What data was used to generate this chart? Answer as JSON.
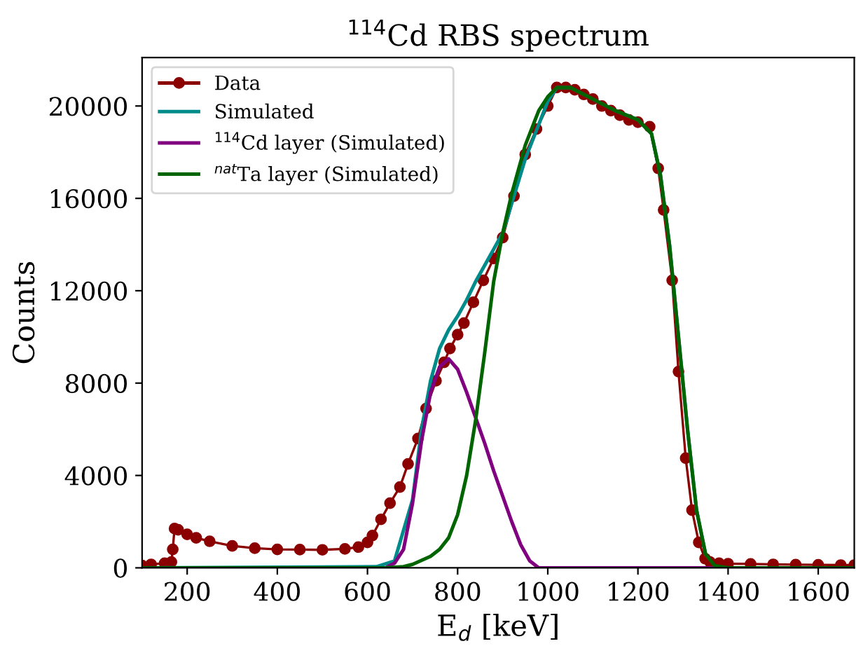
{
  "chart_data": {
    "type": "line",
    "title": "$^{114}$Cd RBS spectrum",
    "xlabel": "E$_{d}$ [keV]",
    "ylabel": "Counts",
    "xlim": [
      100,
      1680
    ],
    "xticks": [
      200,
      400,
      600,
      800,
      1000,
      1200,
      1400,
      1600
    ],
    "ylim": [
      0,
      22100
    ],
    "yticks": [
      0,
      4000,
      8000,
      12000,
      16000,
      20000
    ],
    "grid": false,
    "legend": "top left",
    "series": [
      {
        "name": "Data",
        "color": "#8b0000",
        "marker": "circle",
        "x": [
          100,
          120,
          150,
          165,
          168,
          172,
          180,
          200,
          220,
          250,
          300,
          350,
          400,
          450,
          500,
          550,
          580,
          600,
          611,
          630,
          650,
          672,
          690,
          712,
          730,
          752,
          770,
          783,
          800,
          814,
          835,
          857,
          880,
          900,
          925,
          950,
          975,
          1000,
          1020,
          1040,
          1060,
          1080,
          1100,
          1120,
          1140,
          1160,
          1180,
          1200,
          1226,
          1245,
          1257,
          1276,
          1290,
          1306,
          1320,
          1335,
          1349,
          1360,
          1380,
          1400,
          1450,
          1500,
          1550,
          1600,
          1650,
          1680
        ],
        "values": [
          100,
          150,
          200,
          250,
          800,
          1700,
          1650,
          1450,
          1300,
          1150,
          950,
          850,
          800,
          790,
          780,
          820,
          900,
          1100,
          1400,
          2100,
          2800,
          3500,
          4500,
          5600,
          6900,
          8100,
          8900,
          9500,
          10100,
          10600,
          11500,
          12450,
          13400,
          14300,
          16100,
          17900,
          19000,
          20000,
          20800,
          20800,
          20700,
          20500,
          20300,
          20000,
          19800,
          19600,
          19400,
          19300,
          19100,
          17300,
          15500,
          12450,
          8500,
          4750,
          2500,
          1100,
          400,
          250,
          200,
          180,
          170,
          150,
          140,
          130,
          120,
          120
        ]
      },
      {
        "name": "Simulated",
        "color": "#008b8b",
        "marker": "none",
        "x": [
          100,
          620,
          660,
          700,
          720,
          740,
          760,
          780,
          800,
          820,
          840,
          860,
          880,
          900,
          950,
          1000,
          1020,
          1050,
          1100,
          1150,
          1200,
          1230,
          1250,
          1270,
          1290,
          1310,
          1330,
          1350
        ],
        "values": [
          0,
          50,
          300,
          2950,
          6000,
          8100,
          9500,
          10300,
          10900,
          11600,
          12400,
          13100,
          13800,
          14500,
          17700,
          20200,
          20800,
          20800,
          20300,
          19800,
          19400,
          18800,
          17000,
          14000,
          10000,
          6000,
          2500,
          600
        ]
      },
      {
        "name": "$^{114}$Cd layer (Simulated)",
        "color": "#800080",
        "marker": "none",
        "x": [
          100,
          640,
          660,
          680,
          700,
          720,
          740,
          760,
          780,
          800,
          820,
          840,
          860,
          880,
          900,
          920,
          940,
          960,
          980,
          1680
        ],
        "values": [
          0,
          0,
          200,
          800,
          2800,
          5500,
          7600,
          8700,
          9050,
          8600,
          7600,
          6500,
          5400,
          4200,
          3100,
          2000,
          1000,
          300,
          0,
          0
        ]
      },
      {
        "name": "$^{nat}$Ta layer (Simulated)",
        "color": "#006400",
        "marker": "none",
        "x": [
          100,
          640,
          680,
          700,
          740,
          760,
          780,
          800,
          820,
          840,
          860,
          880,
          900,
          920,
          950,
          980,
          1000,
          1020,
          1050,
          1100,
          1150,
          1200,
          1230,
          1250,
          1270,
          1290,
          1310,
          1330,
          1350,
          1370,
          1400,
          1680
        ],
        "values": [
          0,
          0,
          50,
          150,
          500,
          800,
          1300,
          2300,
          4000,
          6400,
          9300,
          12400,
          14500,
          16200,
          18300,
          19800,
          20400,
          20800,
          20800,
          20300,
          19800,
          19400,
          18800,
          17000,
          14000,
          10000,
          6000,
          2500,
          600,
          100,
          0,
          0
        ]
      }
    ]
  }
}
